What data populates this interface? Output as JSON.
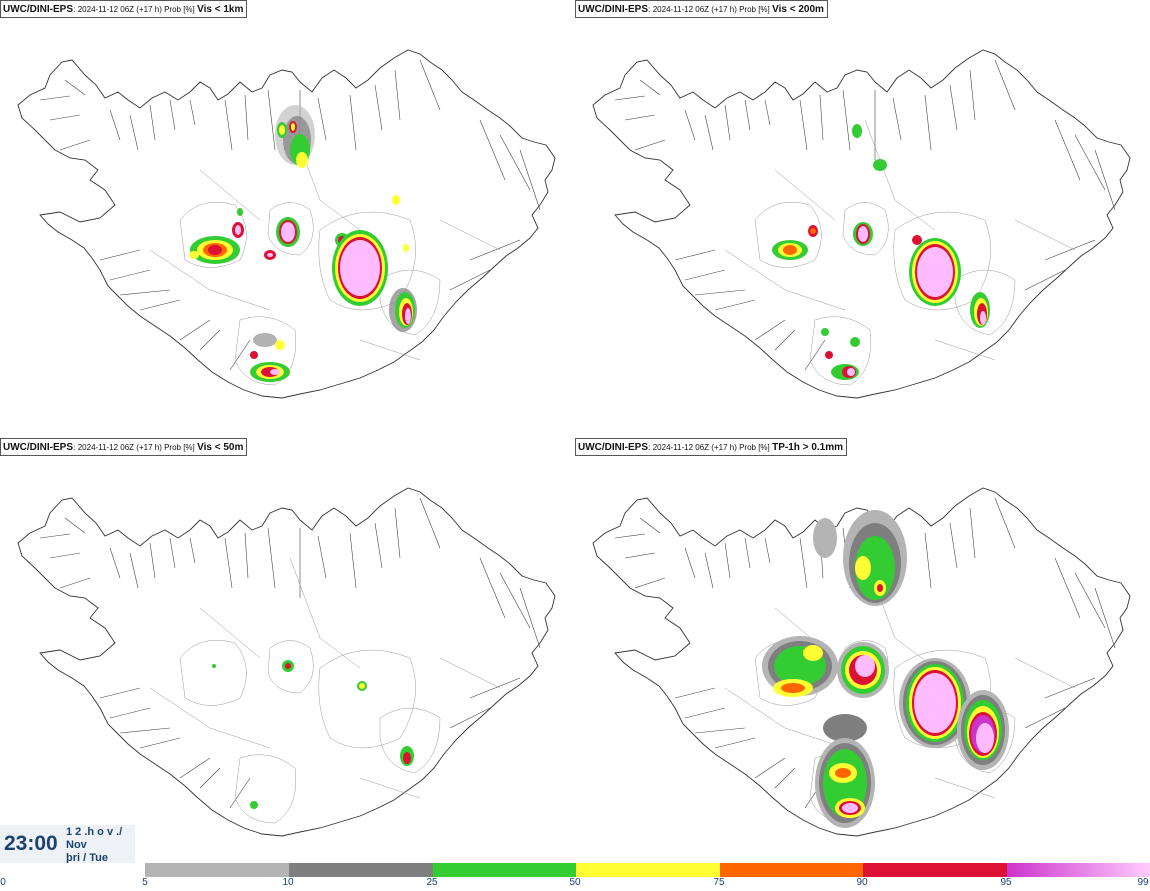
{
  "panels": [
    {
      "model": "UWC/DINI-EPS",
      "meta": "2024-11-12 06Z (+17 h) Prob [%]",
      "criterion": "Vis < 1km"
    },
    {
      "model": "UWC/DINI-EPS",
      "meta": "2024-11-12 06Z (+17 h) Prob [%]",
      "criterion": "Vis < 200m"
    },
    {
      "model": "UWC/DINI-EPS",
      "meta": "2024-11-12 06Z (+17 h) Prob [%]",
      "criterion": "Vis < 50m"
    },
    {
      "model": "UWC/DINI-EPS",
      "meta": "2024-11-12 06Z (+17 h) Prob [%]",
      "criterion": "TP-1h > 0.1mm"
    }
  ],
  "valid_time": {
    "time": "23:00",
    "line1": "1 2 .h o v ./",
    "line2": "Nov",
    "line3": "þri / Tue"
  },
  "colorbar": {
    "ticks": [
      "0",
      "5",
      "10",
      "25",
      "50",
      "75",
      "90",
      "95",
      "99"
    ],
    "bins": [
      {
        "from": "5",
        "to": "10",
        "color": "#b4b4b4"
      },
      {
        "from": "10",
        "to": "25",
        "color": "#7f7f7f"
      },
      {
        "from": "25",
        "to": "50",
        "color": "#33cc33"
      },
      {
        "from": "50",
        "to": "75",
        "color": "#ffff33"
      },
      {
        "from": "75",
        "to": "90",
        "color": "#ff6600"
      },
      {
        "from": "90",
        "to": "95",
        "color": "#dd1133"
      },
      {
        "from": "95",
        "to": "99",
        "color": "#cc33cc"
      },
      {
        "from": "99",
        "to": "",
        "color": "#ffbbff"
      }
    ]
  }
}
